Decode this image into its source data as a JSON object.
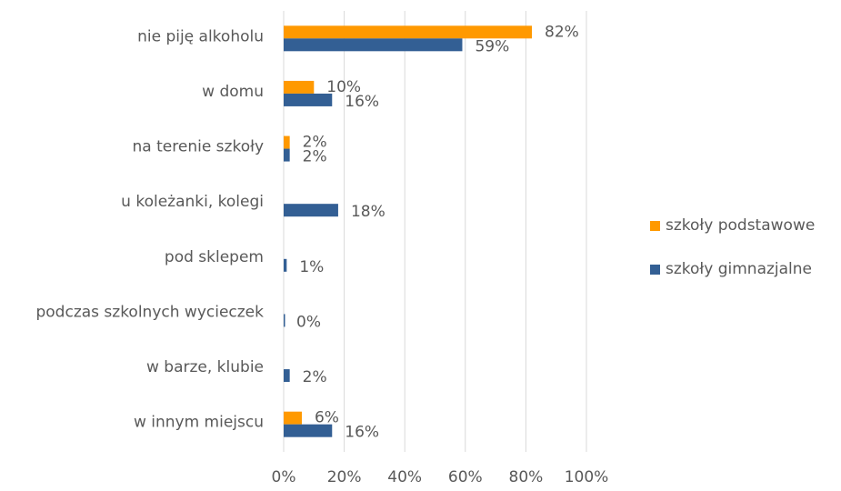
{
  "chart_data": {
    "type": "hbar",
    "categories": [
      "nie piję alkoholu",
      "w domu",
      "na terenie szkoły",
      "u koleżanki, kolegi",
      "pod sklepem",
      "podczas szkolnych wycieczek",
      "w barze, klubie",
      "w innym miejscu"
    ],
    "series": [
      {
        "name": "szkoły podstawowe",
        "color": "#ff9900",
        "values": [
          82,
          10,
          2,
          null,
          null,
          null,
          null,
          6
        ],
        "value_labels": [
          "82%",
          "10%",
          "2%",
          null,
          null,
          null,
          null,
          "6%"
        ]
      },
      {
        "name": "szkoły gimnazjalne",
        "color": "#335f94",
        "values": [
          59,
          16,
          2,
          18,
          1,
          0,
          2,
          16
        ],
        "value_labels": [
          "59%",
          "16%",
          "2%",
          "18%",
          "1%",
          "0%",
          "2%",
          "16%"
        ]
      }
    ],
    "xlim": [
      0,
      100
    ],
    "xticks": [
      {
        "value": 0,
        "label": "0%"
      },
      {
        "value": 20,
        "label": "20%"
      },
      {
        "value": 40,
        "label": "40%"
      },
      {
        "value": 60,
        "label": "60%"
      },
      {
        "value": 80,
        "label": "80%"
      },
      {
        "value": 100,
        "label": "100%"
      }
    ],
    "grid": true,
    "legend": "right"
  }
}
